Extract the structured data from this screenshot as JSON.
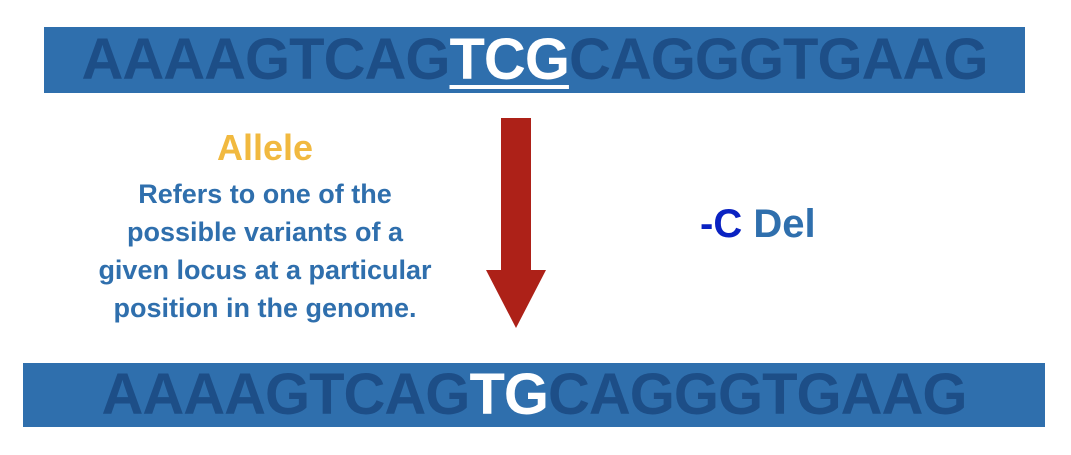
{
  "original_sequence": {
    "prefix": "AAAAGTCAG",
    "highlight": "TCG",
    "suffix": "CAGGGTGAAG"
  },
  "mutated_sequence": {
    "prefix": "AAAAGTCAG",
    "highlight": "TG",
    "suffix": "CAGGGTGAAG"
  },
  "definition": {
    "term": "Allele",
    "lines": [
      "Refers to one of the",
      "possible variants of a",
      "given locus at a particular",
      "position in the genome."
    ]
  },
  "mutation_label": {
    "symbol": "-C",
    "type": "Del"
  },
  "colors": {
    "bar": "#2f6fad",
    "sequence_text": "#1d4e87",
    "highlight_text": "#ffffff",
    "term": "#f1b93f",
    "definition_text": "#2f6fad",
    "arrow": "#ad2118",
    "mutation_symbol": "#0a22c2"
  },
  "icons": {
    "arrow": "arrow-down-icon"
  }
}
